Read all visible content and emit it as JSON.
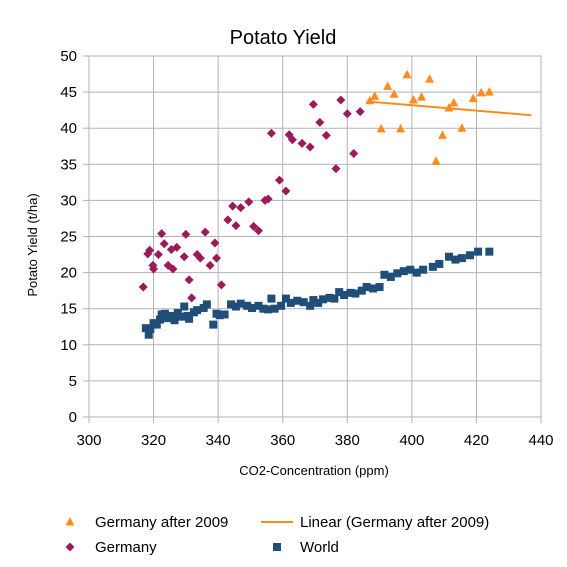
{
  "chart_data": {
    "type": "scatter",
    "title": "Potato Yield",
    "xlabel": "CO2-Concentration (ppm)",
    "ylabel": "Potato Yield (t/ha)",
    "xlim": [
      300,
      440
    ],
    "ylim": [
      0,
      50
    ],
    "x_ticks": [
      300,
      320,
      340,
      360,
      380,
      400,
      420,
      440
    ],
    "y_ticks": [
      0,
      5,
      10,
      15,
      20,
      25,
      30,
      35,
      40,
      45,
      50
    ],
    "grid": true,
    "legend_position": "bottom",
    "colors": {
      "world": "#1f4e79",
      "germany": "#9b1b5a",
      "germany_after_2009": "#ff8c1a",
      "linear": "#ff8c1a"
    },
    "legend": [
      {
        "label": "Germany after 2009",
        "marker": "triangle",
        "color": "#ff8c1a"
      },
      {
        "label": "Linear (Germany after 2009)",
        "marker": "line",
        "color": "#ff8c1a"
      },
      {
        "label": "Germany",
        "marker": "diamond",
        "color": "#9b1b5a"
      },
      {
        "label": "World",
        "marker": "square",
        "color": "#1f4e79"
      }
    ],
    "series": [
      {
        "name": "World",
        "marker": "square",
        "color": "#1f4e79",
        "points": [
          [
            317.6,
            12.3
          ],
          [
            318.5,
            11.4
          ],
          [
            319.0,
            12.2
          ],
          [
            320.0,
            13.0
          ],
          [
            321.0,
            12.8
          ],
          [
            322.0,
            13.5
          ],
          [
            322.5,
            14.2
          ],
          [
            323.5,
            14.3
          ],
          [
            324.5,
            13.7
          ],
          [
            325.5,
            14.0
          ],
          [
            326.5,
            13.4
          ],
          [
            327.5,
            14.4
          ],
          [
            328.5,
            13.9
          ],
          [
            329.5,
            15.3
          ],
          [
            330.5,
            14.0
          ],
          [
            331.0,
            13.6
          ],
          [
            332.5,
            14.5
          ],
          [
            333.5,
            14.8
          ],
          [
            335.5,
            15.1
          ],
          [
            336.5,
            15.6
          ],
          [
            338.5,
            12.8
          ],
          [
            339.5,
            14.3
          ],
          [
            340.5,
            14.1
          ],
          [
            342.0,
            14.2
          ],
          [
            344.0,
            15.6
          ],
          [
            345.5,
            15.3
          ],
          [
            347.0,
            15.7
          ],
          [
            349.0,
            15.4
          ],
          [
            350.5,
            15.1
          ],
          [
            352.5,
            15.4
          ],
          [
            354.0,
            15.0
          ],
          [
            355.5,
            14.9
          ],
          [
            356.5,
            16.4
          ],
          [
            357.5,
            15.0
          ],
          [
            359.5,
            15.4
          ],
          [
            361.0,
            16.4
          ],
          [
            362.5,
            15.8
          ],
          [
            364.5,
            16.1
          ],
          [
            366.5,
            15.9
          ],
          [
            368.5,
            15.4
          ],
          [
            369.5,
            16.2
          ],
          [
            371.0,
            15.8
          ],
          [
            372.5,
            16.3
          ],
          [
            374.5,
            16.5
          ],
          [
            376.0,
            16.4
          ],
          [
            377.5,
            17.3
          ],
          [
            379.0,
            16.9
          ],
          [
            381.0,
            17.2
          ],
          [
            382.5,
            17.1
          ],
          [
            384.5,
            17.5
          ],
          [
            386.0,
            18.0
          ],
          [
            388.0,
            17.8
          ],
          [
            390.0,
            18.0
          ],
          [
            391.5,
            19.7
          ],
          [
            393.5,
            19.4
          ],
          [
            395.5,
            19.9
          ],
          [
            397.5,
            20.2
          ],
          [
            399.5,
            20.4
          ],
          [
            401.5,
            20.0
          ],
          [
            403.5,
            20.4
          ],
          [
            406.5,
            20.8
          ],
          [
            408.5,
            21.2
          ],
          [
            411.5,
            22.2
          ],
          [
            413.5,
            21.8
          ],
          [
            415.5,
            22.0
          ],
          [
            418.0,
            22.4
          ],
          [
            420.5,
            22.9
          ],
          [
            424.0,
            22.9
          ]
        ]
      },
      {
        "name": "Germany",
        "marker": "diamond",
        "color": "#9b1b5a",
        "points": [
          [
            316.8,
            18.0
          ],
          [
            318.2,
            22.6
          ],
          [
            318.8,
            23.1
          ],
          [
            319.8,
            21.0
          ],
          [
            320.0,
            20.5
          ],
          [
            321.5,
            22.5
          ],
          [
            322.5,
            25.4
          ],
          [
            323.3,
            24.0
          ],
          [
            324.5,
            21.0
          ],
          [
            325.5,
            23.2
          ],
          [
            326.0,
            20.5
          ],
          [
            327.2,
            23.5
          ],
          [
            329.5,
            22.2
          ],
          [
            330.0,
            25.3
          ],
          [
            331.0,
            19.0
          ],
          [
            331.8,
            16.5
          ],
          [
            333.5,
            22.5
          ],
          [
            334.5,
            22.0
          ],
          [
            336.0,
            25.6
          ],
          [
            337.5,
            21.0
          ],
          [
            339.0,
            24.1
          ],
          [
            339.5,
            22.0
          ],
          [
            341.0,
            18.3
          ],
          [
            343.0,
            27.3
          ],
          [
            344.5,
            29.2
          ],
          [
            345.5,
            26.5
          ],
          [
            347.0,
            29.0
          ],
          [
            349.5,
            29.8
          ],
          [
            351.0,
            26.4
          ],
          [
            352.5,
            25.8
          ],
          [
            354.5,
            30.0
          ],
          [
            355.5,
            30.2
          ],
          [
            356.5,
            39.3
          ],
          [
            359.0,
            32.8
          ],
          [
            361.0,
            31.3
          ],
          [
            362.0,
            39.1
          ],
          [
            363.0,
            38.4
          ],
          [
            366.0,
            37.9
          ],
          [
            368.5,
            37.4
          ],
          [
            369.5,
            43.3
          ],
          [
            371.5,
            40.8
          ],
          [
            373.5,
            39.0
          ],
          [
            376.5,
            34.4
          ],
          [
            378.0,
            43.9
          ],
          [
            380.0,
            42.0
          ],
          [
            382.0,
            36.5
          ],
          [
            384.0,
            42.3
          ]
        ]
      },
      {
        "name": "Germany after 2009",
        "marker": "triangle",
        "color": "#ff8c1a",
        "points": [
          [
            387.0,
            43.8
          ],
          [
            388.5,
            44.4
          ],
          [
            390.5,
            39.9
          ],
          [
            392.5,
            45.8
          ],
          [
            394.5,
            44.7
          ],
          [
            396.5,
            39.9
          ],
          [
            398.5,
            47.4
          ],
          [
            400.5,
            43.9
          ],
          [
            403.0,
            44.3
          ],
          [
            405.5,
            46.8
          ],
          [
            407.5,
            35.4
          ],
          [
            409.5,
            39.0
          ],
          [
            411.5,
            42.8
          ],
          [
            413.0,
            43.5
          ],
          [
            415.5,
            40.0
          ],
          [
            419.0,
            44.1
          ],
          [
            421.5,
            44.9
          ],
          [
            424.0,
            45.0
          ]
        ]
      }
    ],
    "trendline": {
      "name": "Linear (Germany after 2009)",
      "color": "#ff8c1a",
      "from": [
        386.0,
        43.7
      ],
      "to": [
        437.0,
        41.8
      ]
    }
  }
}
